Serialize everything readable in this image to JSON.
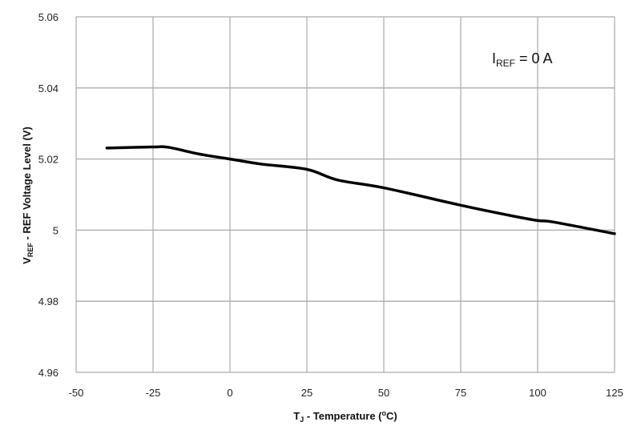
{
  "chart_data": {
    "type": "line",
    "title": "",
    "xlabel": {
      "main": "T",
      "sub": "J",
      "rest": " - Temperature (",
      "sup": "o",
      "end": "C)"
    },
    "ylabel": {
      "main": "V",
      "sub": "REF",
      "rest": " - REF Voltage Level (V)"
    },
    "xlim": [
      -50,
      125
    ],
    "ylim": [
      4.96,
      5.06
    ],
    "xticks": [
      "-50",
      "-25",
      "0",
      "25",
      "50",
      "75",
      "100",
      "125"
    ],
    "yticks": [
      "4.96",
      "4.98",
      "5",
      "5.02",
      "5.04",
      "5.06"
    ],
    "grid": true,
    "annotation": {
      "main": "I",
      "sub": "REF",
      "rest": " = 0 A"
    },
    "series": [
      {
        "color": "#000000",
        "x": [
          -40,
          -25,
          -20,
          -10,
          0,
          10,
          25,
          35,
          50,
          75,
          90,
          100,
          105,
          125
        ],
        "y": [
          5.0231,
          5.0234,
          5.0233,
          5.0214,
          5.02,
          5.0186,
          5.0171,
          5.0141,
          5.0119,
          5.007,
          5.0043,
          5.0027,
          5.0023,
          4.999
        ]
      }
    ]
  }
}
